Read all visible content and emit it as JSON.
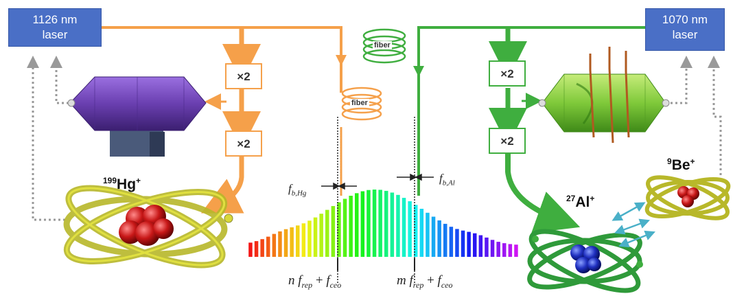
{
  "lasers": {
    "left": {
      "line1": "1126 nm",
      "line2": "laser",
      "color": "#4a6fc6"
    },
    "right": {
      "line1": "1070 nm",
      "line2": "laser",
      "color": "#4a6fc6"
    }
  },
  "doublers": {
    "label": "×2"
  },
  "fibers": {
    "label": "fiber"
  },
  "ions": {
    "hg": {
      "mass": "199",
      "symbol": "Hg",
      "charge": "+"
    },
    "al": {
      "mass": "27",
      "symbol": "Al",
      "charge": "+"
    },
    "be": {
      "mass": "9",
      "symbol": "Be",
      "charge": "+"
    }
  },
  "beats": {
    "hg": {
      "f": "f",
      "sub": "b,Hg"
    },
    "al": {
      "f": "f",
      "sub": "b,Al"
    }
  },
  "comb_modes": {
    "n": {
      "n": "n",
      "frep": "f",
      "frep_sub": "rep",
      "plus": "+",
      "fceo": "f",
      "fceo_sub": "ceo"
    },
    "m": {
      "n": "m",
      "frep": "f",
      "frep_sub": "rep",
      "plus": "+",
      "fceo": "f",
      "fceo_sub": "ceo"
    }
  },
  "colors": {
    "orange": "#f5a04a",
    "green": "#3fae3f",
    "trap_purple": "#6a3fb0",
    "trap_green": "#7fc93a"
  }
}
